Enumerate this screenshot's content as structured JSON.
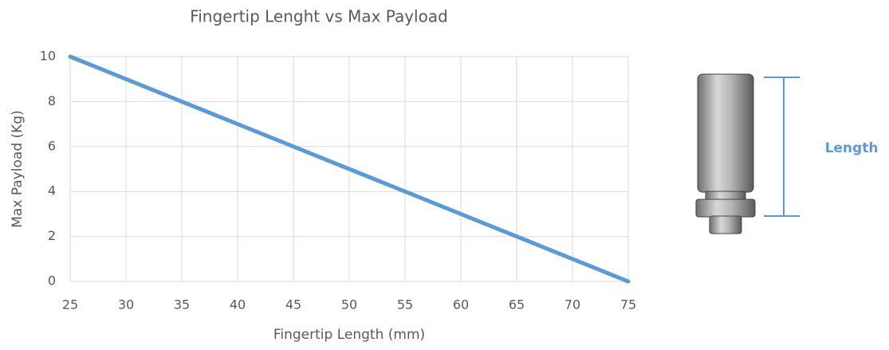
{
  "chart_data": {
    "type": "line",
    "title": "Fingertip Lenght vs Max Payload",
    "x_label": "Fingertip Length (mm)",
    "y_label": "Max Payload (Kg)",
    "x": [
      25,
      30,
      35,
      40,
      45,
      50,
      55,
      60,
      65,
      70,
      75
    ],
    "series": [
      {
        "name": "Max Payload",
        "color": "#5b9bd5",
        "values": [
          10,
          9,
          8,
          7,
          6,
          5,
          4,
          3,
          2,
          1,
          0
        ]
      }
    ],
    "xlim": [
      25,
      75
    ],
    "ylim": [
      0,
      10
    ],
    "xticks": [
      25,
      30,
      35,
      40,
      45,
      50,
      55,
      60,
      65,
      70,
      75
    ],
    "yticks": [
      0,
      2,
      4,
      6,
      8,
      10
    ],
    "grid": true,
    "legend": false,
    "annotation": "Length"
  }
}
